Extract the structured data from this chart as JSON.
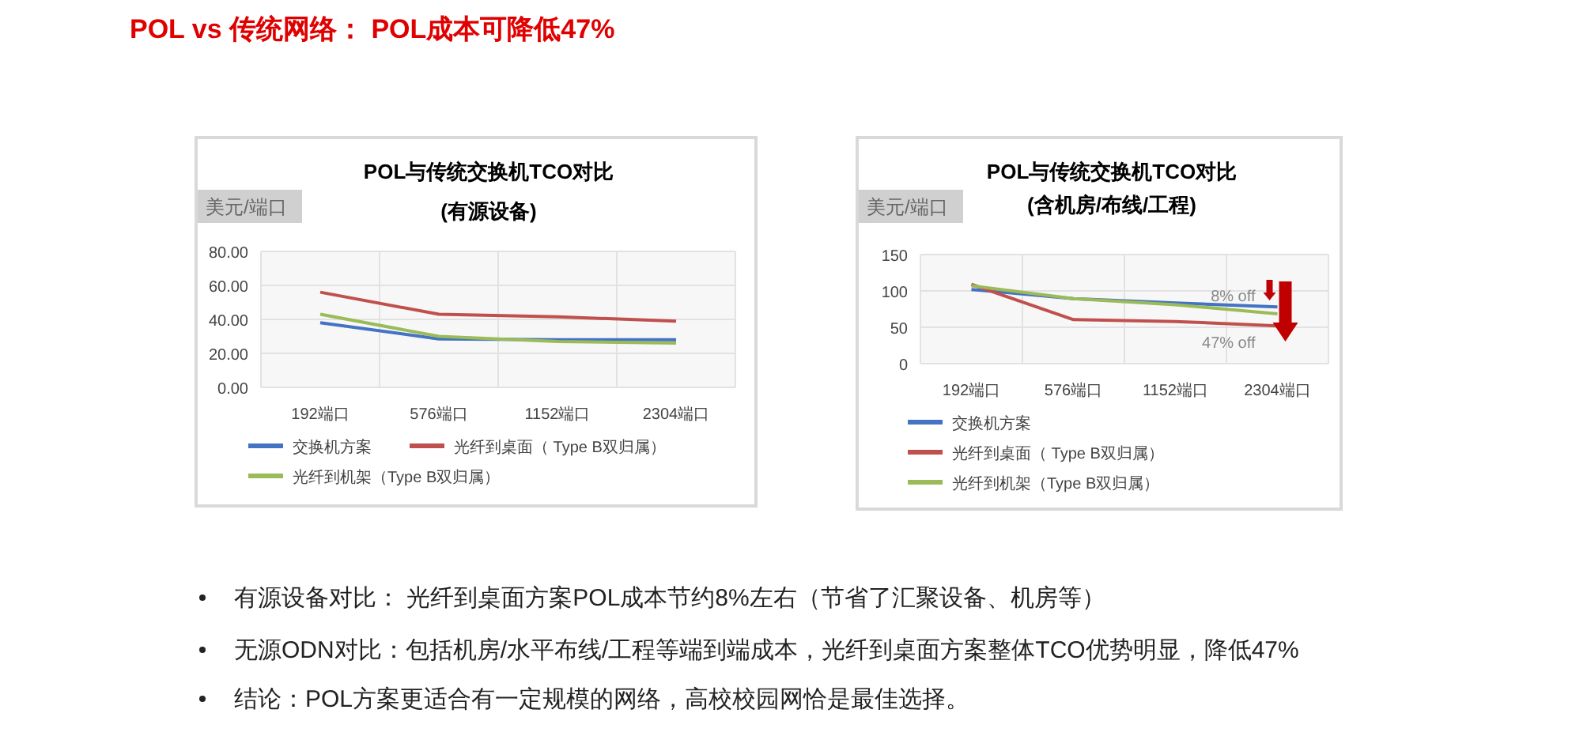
{
  "chart_data": [
    {
      "type": "other",
      "title": "POL vs 传统网络： POL成本可降低47%",
      "annotations": [
        "有源设备对比： 光纤到桌面方案POL成本节约8%左右（节省了汇聚设备、机房等）",
        "无源ODN对比：包括机房/水平布线/工程等端到端成本，光纤到桌面方案整体TCO优势明显，降低47%",
        "结论：POL方案更适合有一定规模的网络，高校校园网恰是最佳选择。"
      ]
    },
    {
      "type": "line",
      "title": "POL与传统交换机TCO对比",
      "subtitle": "(有源设备)",
      "ylabel": "美元/端口",
      "categories": [
        "192端口",
        "576端口",
        "1152端口",
        "2304端口"
      ],
      "ylim": [
        0,
        80
      ],
      "yticks": [
        {
          "value": 0,
          "label": "0.00"
        },
        {
          "value": 20,
          "label": "20.00"
        },
        {
          "value": 40,
          "label": "40.00"
        },
        {
          "value": 60,
          "label": "60.00"
        },
        {
          "value": 80,
          "label": "80.00"
        }
      ],
      "grid": true,
      "legend": "bottom",
      "series": [
        {
          "name": "交换机方案",
          "color": "#4472c4",
          "values": [
            38,
            28.5,
            28,
            28
          ]
        },
        {
          "name": "光纤到桌面（ Type B双归属）",
          "color": "#c0504d",
          "values": [
            56,
            43,
            41.5,
            39
          ]
        },
        {
          "name": "光纤到机架（Type B双归属）",
          "color": "#9bbb59",
          "values": [
            43,
            30,
            27,
            26
          ]
        }
      ]
    },
    {
      "type": "line",
      "title": "POL与传统交换机TCO对比",
      "subtitle": "(含机房/布线/工程)",
      "ylabel": "美元/端口",
      "categories": [
        "192端口",
        "576端口",
        "1152端口",
        "2304端口"
      ],
      "ylim": [
        0,
        150
      ],
      "yticks": [
        0,
        50,
        100,
        150
      ],
      "grid": true,
      "legend": "bottom",
      "annotations": [
        {
          "text": "8% off",
          "x": "2304端口",
          "y": 95
        },
        {
          "text": "47% off",
          "x": "2304端口",
          "y": 30
        }
      ],
      "series": [
        {
          "name": "交换机方案",
          "color": "#4472c4",
          "values": [
            102,
            89.5,
            83.5,
            78
          ]
        },
        {
          "name": "光纤到桌面（ Type B双归属）",
          "color": "#c0504d",
          "values": [
            109,
            60.5,
            58,
            52
          ]
        },
        {
          "name": "光纤到机架（Type B双归属）",
          "color": "#9bbb59",
          "values": [
            107,
            89.5,
            81,
            68.5
          ]
        }
      ]
    }
  ]
}
